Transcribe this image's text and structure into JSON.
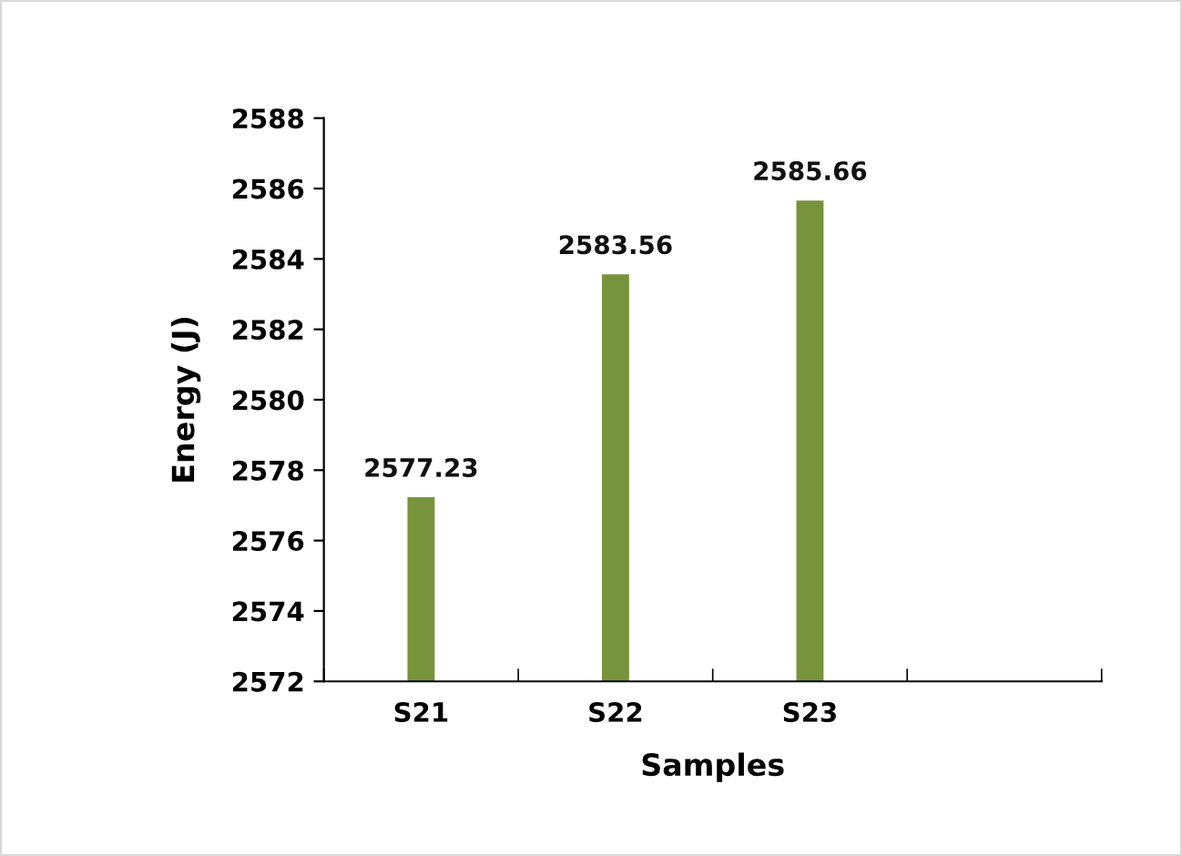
{
  "chart_data": {
    "type": "bar",
    "xlabel": "Samples",
    "ylabel": "Energy (J)",
    "categories": [
      "S21",
      "S22",
      "S23",
      null
    ],
    "values": [
      2577.23,
      2583.56,
      2585.66,
      null
    ],
    "color": "#77933c",
    "ylim": [
      2572,
      2588
    ],
    "yticks": [
      2572,
      2574,
      2576,
      2578,
      2580,
      2582,
      2584,
      2586,
      2588
    ],
    "data_labels": true,
    "grid": false,
    "legend": false
  }
}
